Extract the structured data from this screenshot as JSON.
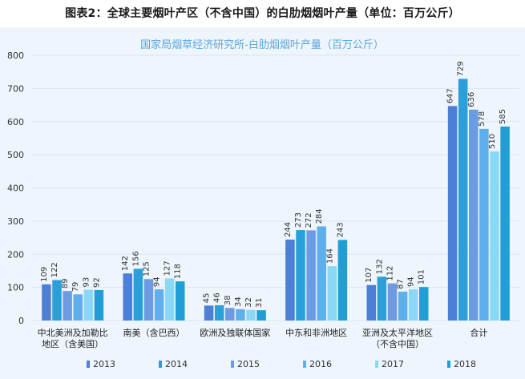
{
  "figure_title": "图表2：全球主要烟叶产区（不含中国）的白肋烟烟叶产量（单位：百万公斤）",
  "chart_data": {
    "type": "bar",
    "title": "国家局烟草经济研究所-白肋烟烟叶产量（百万公斤）",
    "xlabel": "",
    "ylabel": "",
    "ylim": [
      0,
      800
    ],
    "yticks": [
      0,
      100,
      200,
      300,
      400,
      500,
      600,
      700,
      800
    ],
    "grid": true,
    "legend_position": "bottom",
    "categories": [
      [
        "中北美洲及加勒比",
        "地区（含美国）"
      ],
      [
        "南美（含巴西）"
      ],
      [
        "欧洲及独联体国家"
      ],
      [
        "中东和非洲地区"
      ],
      [
        "亚洲及太平洋地区",
        "（不含中国）"
      ],
      [
        "合计"
      ]
    ],
    "series": [
      {
        "name": "2013",
        "color": "#4c7fd6",
        "values": [
          109,
          142,
          45,
          244,
          107,
          647
        ]
      },
      {
        "name": "2014",
        "color": "#2a9fd8",
        "values": [
          122,
          156,
          46,
          273,
          132,
          729
        ]
      },
      {
        "name": "2015",
        "color": "#6c9be3",
        "values": [
          89,
          125,
          38,
          272,
          112,
          636
        ]
      },
      {
        "name": "2016",
        "color": "#5eb0ec",
        "values": [
          79,
          94,
          34,
          284,
          87,
          578
        ]
      },
      {
        "name": "2017",
        "color": "#8ad8f6",
        "values": [
          93,
          127,
          32,
          164,
          94,
          510
        ]
      },
      {
        "name": "2018",
        "color": "#1f9fd6",
        "values": [
          92,
          118,
          31,
          243,
          101,
          585
        ]
      }
    ]
  }
}
